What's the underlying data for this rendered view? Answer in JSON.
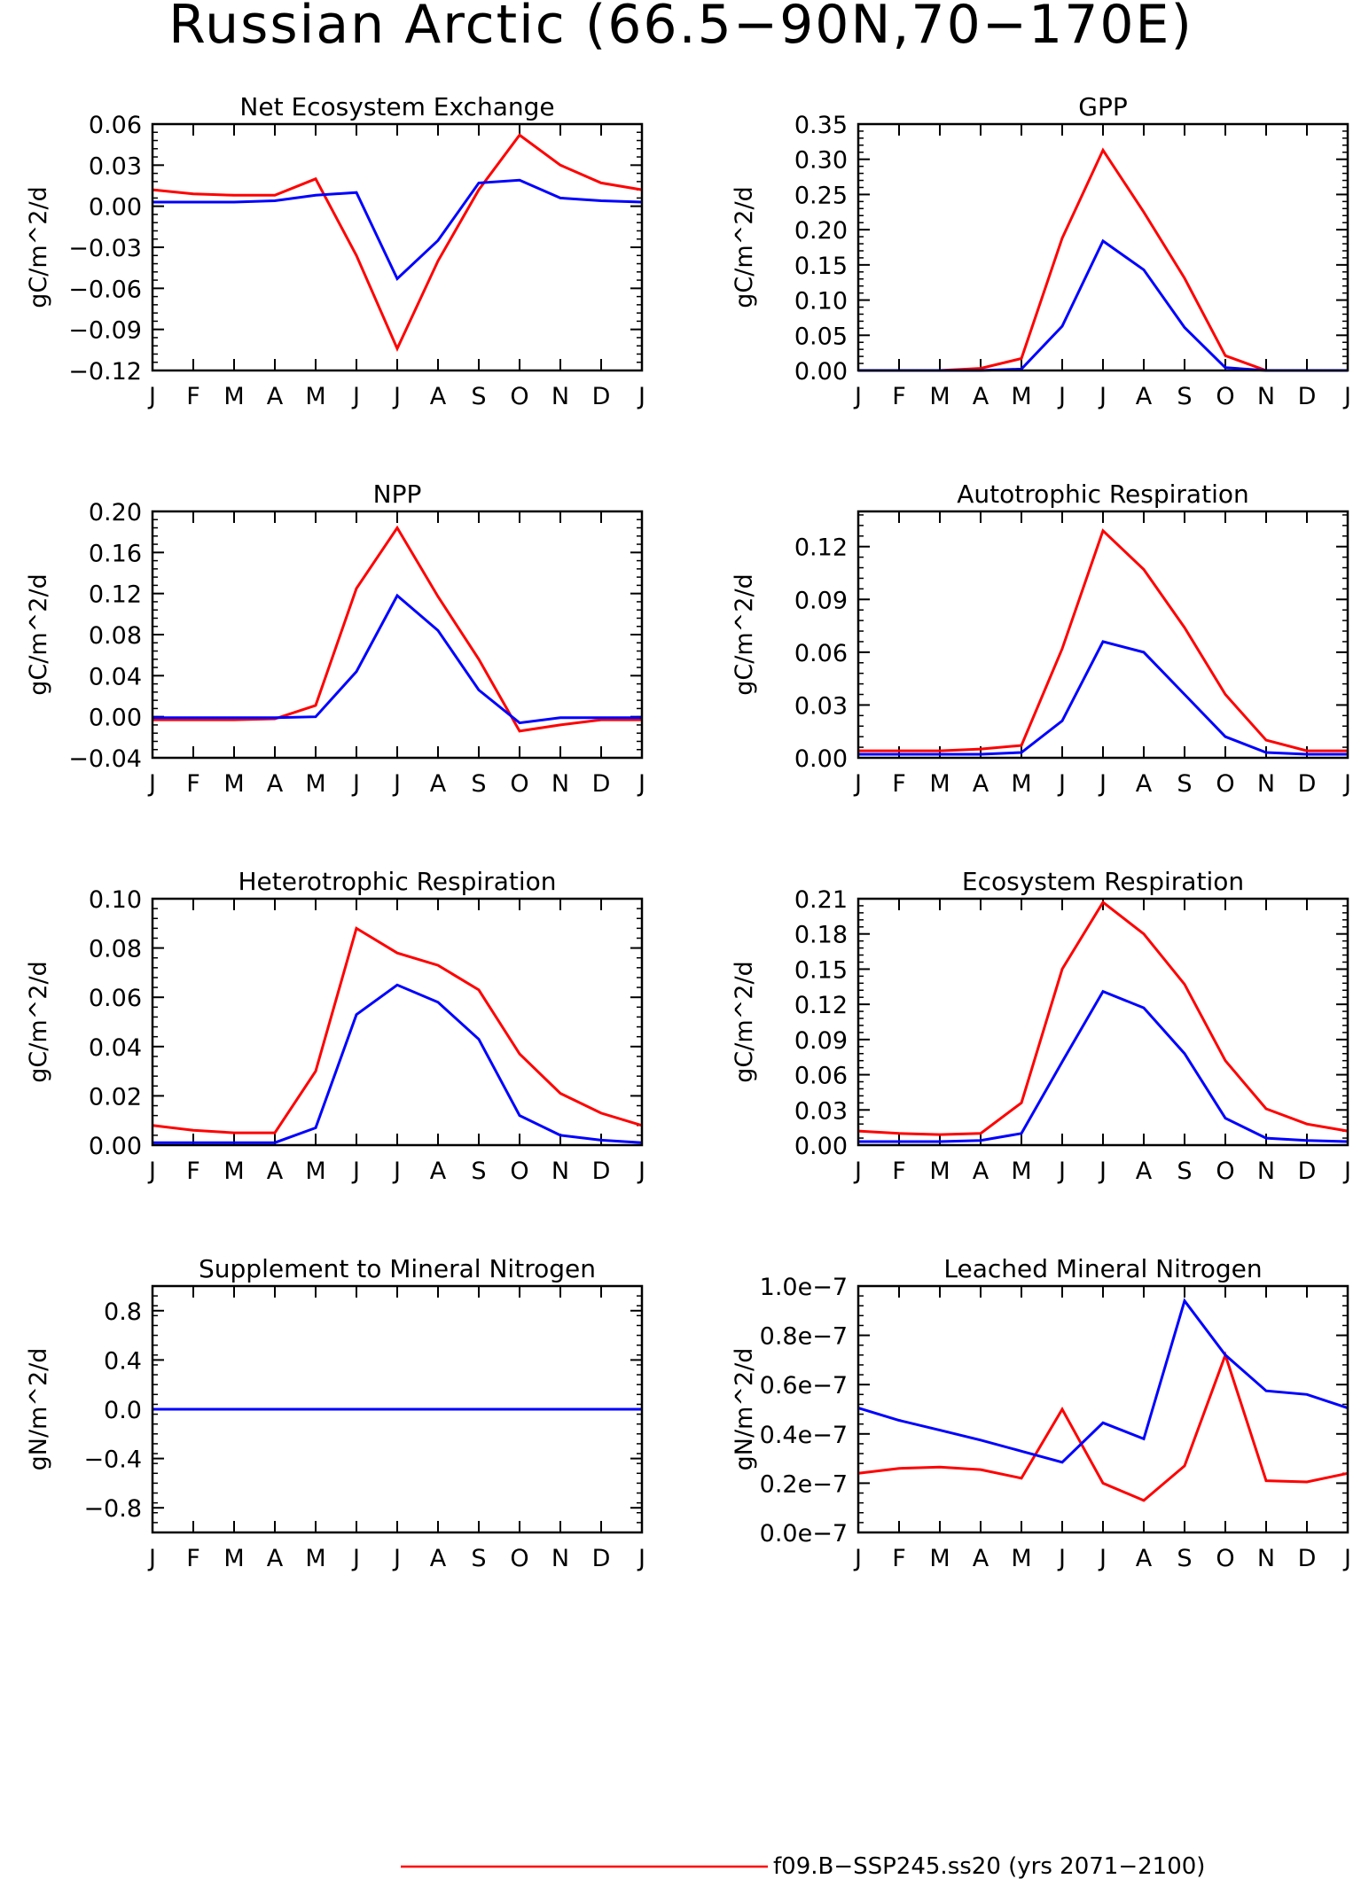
{
  "title": "Russian Arctic (66.5−90N,70−170E)",
  "colors": {
    "red": "#ff0000",
    "blue": "#0000ff",
    "axis": "#000000"
  },
  "legend": {
    "label": "f09.B−SSP245.ss20 (yrs 2071−2100)",
    "color": "#ff0000"
  },
  "chart_data": [
    {
      "type": "line",
      "title": "Net Ecosystem Exchange",
      "ylabel": "gC/m^2/d",
      "categories": [
        "J",
        "F",
        "M",
        "A",
        "M",
        "J",
        "J",
        "A",
        "S",
        "O",
        "N",
        "D",
        "J"
      ],
      "ylim": [
        -0.12,
        0.06
      ],
      "yticks": [
        -0.12,
        -0.09,
        -0.06,
        -0.03,
        0.0,
        0.03,
        0.06
      ],
      "ytick_labels": [
        "−0.12",
        "−0.09",
        "−0.06",
        "−0.03",
        "0.00",
        "0.03",
        "0.06"
      ],
      "series": [
        {
          "color": "red",
          "values": [
            0.012,
            0.009,
            0.008,
            0.008,
            0.02,
            -0.036,
            -0.104,
            -0.04,
            0.012,
            0.052,
            0.03,
            0.017,
            0.012
          ]
        },
        {
          "color": "blue",
          "values": [
            0.003,
            0.003,
            0.003,
            0.004,
            0.008,
            0.01,
            -0.053,
            -0.025,
            0.017,
            0.019,
            0.006,
            0.004,
            0.003
          ]
        }
      ]
    },
    {
      "type": "line",
      "title": "GPP",
      "ylabel": "gC/m^2/d",
      "categories": [
        "J",
        "F",
        "M",
        "A",
        "M",
        "J",
        "J",
        "A",
        "S",
        "O",
        "N",
        "D",
        "J"
      ],
      "ylim": [
        0,
        0.35
      ],
      "yticks": [
        0,
        0.05,
        0.1,
        0.15,
        0.2,
        0.25,
        0.3,
        0.35
      ],
      "ytick_labels": [
        "0.00",
        "0.05",
        "0.10",
        "0.15",
        "0.20",
        "0.25",
        "0.30",
        "0.35"
      ],
      "series": [
        {
          "color": "red",
          "values": [
            0,
            0,
            0,
            0.003,
            0.017,
            0.188,
            0.313,
            0.225,
            0.131,
            0.021,
            0,
            0,
            0
          ]
        },
        {
          "color": "blue",
          "values": [
            0,
            0,
            0,
            0,
            0.002,
            0.063,
            0.184,
            0.143,
            0.061,
            0.004,
            0,
            0,
            0
          ]
        }
      ]
    },
    {
      "type": "line",
      "title": "NPP",
      "ylabel": "gC/m^2/d",
      "categories": [
        "J",
        "F",
        "M",
        "A",
        "M",
        "J",
        "J",
        "A",
        "S",
        "O",
        "N",
        "D",
        "J"
      ],
      "ylim": [
        -0.04,
        0.2
      ],
      "yticks": [
        -0.04,
        0.0,
        0.04,
        0.08,
        0.12,
        0.16,
        0.2
      ],
      "ytick_labels": [
        "−0.04",
        "0.00",
        "0.04",
        "0.08",
        "0.12",
        "0.16",
        "0.20"
      ],
      "series": [
        {
          "color": "red",
          "values": [
            -0.003,
            -0.003,
            -0.003,
            -0.002,
            0.011,
            0.125,
            0.184,
            0.117,
            0.056,
            -0.014,
            -0.008,
            -0.003,
            -0.003
          ]
        },
        {
          "color": "blue",
          "values": [
            -0.001,
            -0.001,
            -0.001,
            -0.001,
            0.0,
            0.044,
            0.118,
            0.084,
            0.026,
            -0.006,
            -0.001,
            -0.001,
            -0.001
          ]
        }
      ]
    },
    {
      "type": "line",
      "title": "Autotrophic Respiration",
      "ylabel": "gC/m^2/d",
      "categories": [
        "J",
        "F",
        "M",
        "A",
        "M",
        "J",
        "J",
        "A",
        "S",
        "O",
        "N",
        "D",
        "J"
      ],
      "ylim": [
        0,
        0.14
      ],
      "yticks": [
        0.0,
        0.03,
        0.06,
        0.09,
        0.12
      ],
      "ytick_labels": [
        "0.00",
        "0.03",
        "0.06",
        "0.09",
        "0.12"
      ],
      "series": [
        {
          "color": "red",
          "values": [
            0.004,
            0.004,
            0.004,
            0.005,
            0.007,
            0.062,
            0.129,
            0.107,
            0.074,
            0.036,
            0.01,
            0.004,
            0.004
          ]
        },
        {
          "color": "blue",
          "values": [
            0.002,
            0.002,
            0.002,
            0.002,
            0.003,
            0.021,
            0.066,
            0.06,
            0.036,
            0.012,
            0.003,
            0.002,
            0.002
          ]
        }
      ]
    },
    {
      "type": "line",
      "title": "Heterotrophic Respiration",
      "ylabel": "gC/m^2/d",
      "categories": [
        "J",
        "F",
        "M",
        "A",
        "M",
        "J",
        "J",
        "A",
        "S",
        "O",
        "N",
        "D",
        "J"
      ],
      "ylim": [
        0,
        0.1
      ],
      "yticks": [
        0.0,
        0.02,
        0.04,
        0.06,
        0.08,
        0.1
      ],
      "ytick_labels": [
        "0.00",
        "0.02",
        "0.04",
        "0.06",
        "0.08",
        "0.10"
      ],
      "series": [
        {
          "color": "red",
          "values": [
            0.008,
            0.006,
            0.005,
            0.005,
            0.03,
            0.088,
            0.078,
            0.073,
            0.063,
            0.037,
            0.021,
            0.013,
            0.008
          ]
        },
        {
          "color": "blue",
          "values": [
            0.001,
            0.001,
            0.001,
            0.001,
            0.007,
            0.053,
            0.065,
            0.058,
            0.043,
            0.012,
            0.004,
            0.002,
            0.001
          ]
        }
      ]
    },
    {
      "type": "line",
      "title": "Ecosystem Respiration",
      "ylabel": "gC/m^2/d",
      "categories": [
        "J",
        "F",
        "M",
        "A",
        "M",
        "J",
        "J",
        "A",
        "S",
        "O",
        "N",
        "D",
        "J"
      ],
      "ylim": [
        0,
        0.21
      ],
      "yticks": [
        0.0,
        0.03,
        0.06,
        0.09,
        0.12,
        0.15,
        0.18,
        0.21
      ],
      "ytick_labels": [
        "0.00",
        "0.03",
        "0.06",
        "0.09",
        "0.12",
        "0.15",
        "0.18",
        "0.21"
      ],
      "series": [
        {
          "color": "red",
          "values": [
            0.012,
            0.01,
            0.009,
            0.01,
            0.036,
            0.15,
            0.207,
            0.18,
            0.137,
            0.072,
            0.031,
            0.018,
            0.012
          ]
        },
        {
          "color": "blue",
          "values": [
            0.003,
            0.003,
            0.003,
            0.004,
            0.01,
            0.071,
            0.131,
            0.117,
            0.078,
            0.023,
            0.006,
            0.004,
            0.003
          ]
        }
      ]
    },
    {
      "type": "line",
      "title": "Supplement to Mineral Nitrogen",
      "ylabel": "gN/m^2/d",
      "categories": [
        "J",
        "F",
        "M",
        "A",
        "M",
        "J",
        "J",
        "A",
        "S",
        "O",
        "N",
        "D",
        "J"
      ],
      "ylim": [
        -1.0,
        1.0
      ],
      "yticks": [
        -0.8,
        -0.4,
        0.0,
        0.4,
        0.8
      ],
      "ytick_labels": [
        "−0.8",
        "−0.4",
        "0.0",
        "0.4",
        "0.8"
      ],
      "series": [
        {
          "color": "red",
          "values": [
            0,
            0,
            0,
            0,
            0,
            0,
            0,
            0,
            0,
            0,
            0,
            0,
            0
          ]
        },
        {
          "color": "blue",
          "values": [
            0,
            0,
            0,
            0,
            0,
            0,
            0,
            0,
            0,
            0,
            0,
            0,
            0
          ]
        }
      ]
    },
    {
      "type": "line",
      "title": "Leached Mineral Nitrogen",
      "ylabel": "gN/m^2/d",
      "categories": [
        "J",
        "F",
        "M",
        "A",
        "M",
        "J",
        "J",
        "A",
        "S",
        "O",
        "N",
        "D",
        "J"
      ],
      "ylim": [
        0,
        1e-07
      ],
      "yticks": [
        0,
        2e-08,
        4e-08,
        6e-08,
        8e-08,
        1e-07
      ],
      "ytick_labels": [
        "0.0e−7",
        "0.2e−7",
        "0.4e−7",
        "0.6e−7",
        "0.8e−7",
        "1.0e−7"
      ],
      "series": [
        {
          "color": "red",
          "values": [
            2.4e-08,
            2.6e-08,
            2.65e-08,
            2.55e-08,
            2.2e-08,
            5e-08,
            2e-08,
            1.3e-08,
            2.7e-08,
            7.2e-08,
            2.1e-08,
            2.05e-08,
            2.4e-08
          ]
        },
        {
          "color": "blue",
          "values": [
            5.05e-08,
            4.55e-08,
            4.15e-08,
            3.75e-08,
            3.3e-08,
            2.85e-08,
            4.45e-08,
            3.8e-08,
            9.4e-08,
            7.2e-08,
            5.75e-08,
            5.6e-08,
            5.05e-08
          ]
        }
      ]
    }
  ]
}
